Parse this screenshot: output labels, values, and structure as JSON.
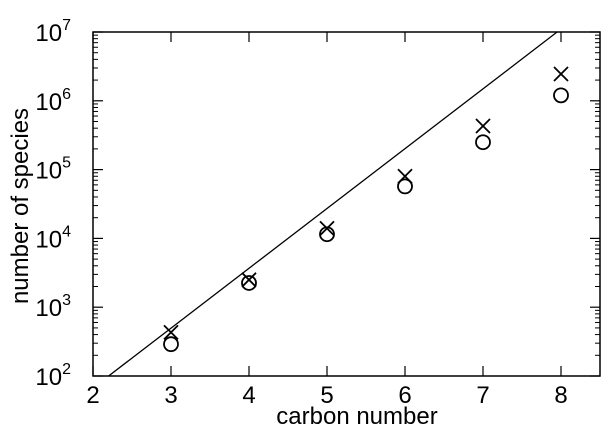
{
  "chart_data": {
    "type": "scatter",
    "xlabel": "carbon number",
    "ylabel": "number of species",
    "xlim": [
      2,
      8.5
    ],
    "ylim": [
      100,
      10000000
    ],
    "y_scale": "log",
    "x_ticks": [
      "2",
      "3",
      "4",
      "5",
      "6",
      "7",
      "8"
    ],
    "y_ticks": [
      {
        "base": "10",
        "exp": "2"
      },
      {
        "base": "10",
        "exp": "3"
      },
      {
        "base": "10",
        "exp": "4"
      },
      {
        "base": "10",
        "exp": "5"
      },
      {
        "base": "10",
        "exp": "6"
      },
      {
        "base": "10",
        "exp": "7"
      }
    ],
    "grid": false,
    "series": [
      {
        "marker": "cross",
        "x": [
          3,
          4,
          5,
          6,
          7,
          8
        ],
        "y": [
          430,
          2500,
          14000,
          80000,
          430000,
          2450000
        ]
      },
      {
        "marker": "circle",
        "x": [
          3,
          4,
          5,
          6,
          7,
          8
        ],
        "y": [
          290,
          2250,
          11500,
          57000,
          250000,
          1200000
        ]
      },
      {
        "marker": "line",
        "x": [
          2.2,
          7.95
        ],
        "y": [
          100,
          10000000
        ]
      }
    ]
  }
}
